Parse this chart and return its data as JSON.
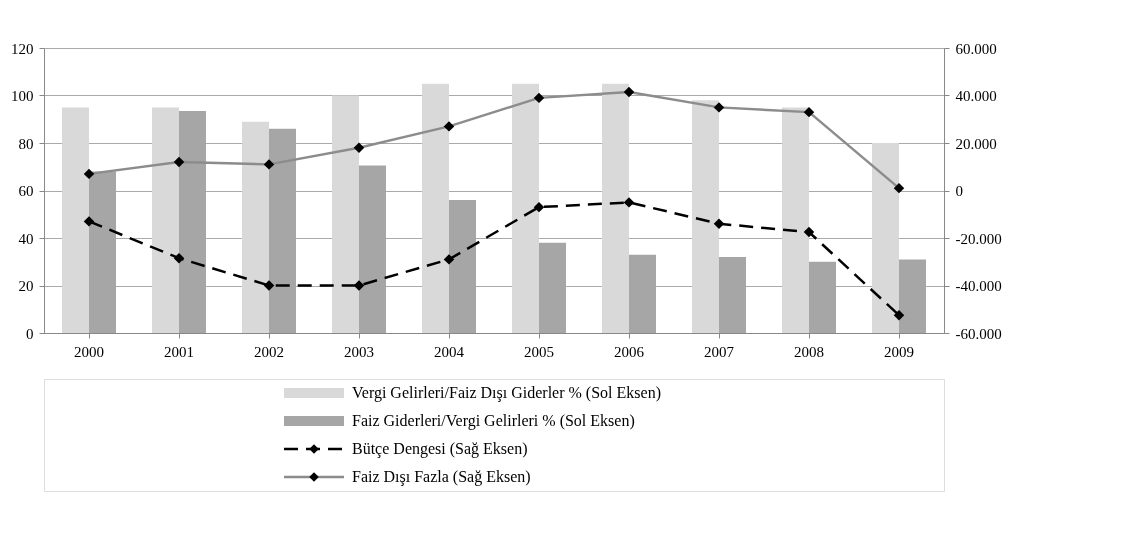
{
  "chart_data": {
    "type": "bar",
    "categories": [
      "2000",
      "2001",
      "2002",
      "2003",
      "2004",
      "2005",
      "2006",
      "2007",
      "2008",
      "2009"
    ],
    "series": [
      {
        "name": "Vergi Gelirleri/Faiz Dışı Giderler % (Sol Eksen)",
        "color": "#d9d9d9",
        "values": [
          95,
          95,
          89,
          100,
          105,
          105,
          105,
          98,
          95,
          80
        ]
      },
      {
        "name": "Faiz Giderleri/Vergi Gelirleri % (Sol Eksen)",
        "color": "#a6a6a6",
        "values": [
          68,
          93.5,
          86,
          70.5,
          56,
          38,
          33,
          32,
          30,
          31
        ]
      },
      {
        "name": "Bütçe Dengesi (Sağ Eksen)",
        "type": "line",
        "axis": "y2",
        "color": "#000000",
        "line_style": "dashed",
        "marker": "diamond",
        "values": [
          -13000,
          -28500,
          -40000,
          -40000,
          -29000,
          -7000,
          -5000,
          -14000,
          -17500,
          -52500
        ]
      },
      {
        "name": "Faiz Dışı Fazla (Sağ Eksen)",
        "type": "line",
        "axis": "y2",
        "color": "#8c8c8c",
        "line_style": "solid",
        "marker": "diamond",
        "values": [
          7000,
          12000,
          11000,
          18000,
          27000,
          39000,
          41500,
          35000,
          33000,
          1000
        ]
      }
    ],
    "ylim": [
      0,
      120
    ],
    "yticks": [
      0,
      20,
      40,
      60,
      80,
      100,
      120
    ],
    "y2lim": [
      -60000,
      60000
    ],
    "y2ticks": [
      {
        "value": -60000,
        "label": "-60.000"
      },
      {
        "value": -40000,
        "label": "-40.000"
      },
      {
        "value": -20000,
        "label": "-20.000"
      },
      {
        "value": 0,
        "label": "0"
      },
      {
        "value": 20000,
        "label": "20.000"
      },
      {
        "value": 40000,
        "label": "40.000"
      },
      {
        "value": 60000,
        "label": "60.000"
      }
    ],
    "grid": "y",
    "legend": "bottom"
  }
}
